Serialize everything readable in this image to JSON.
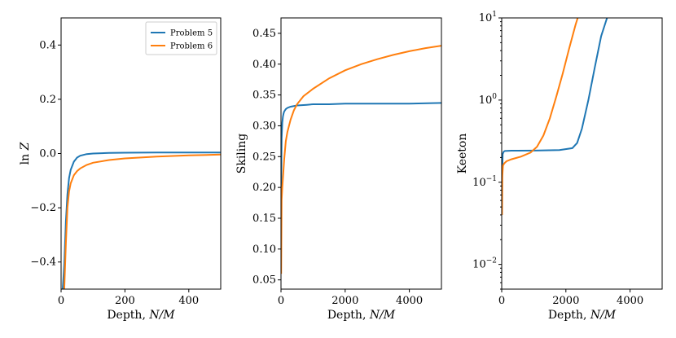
{
  "colors": {
    "problem5": "#1f77b4",
    "problem6": "#ff7f0e"
  },
  "chart_data": [
    {
      "type": "line",
      "xlabel_main": "Depth, ",
      "xlabel_var": "N/M",
      "ylabel_main": "ln ",
      "ylabel_var": "Z",
      "xlim": [
        0,
        500
      ],
      "ylim": [
        -0.5,
        0.5
      ],
      "yscale": "linear",
      "xticks": [
        0,
        200,
        400
      ],
      "xtick_labels": [
        "0",
        "200",
        "400"
      ],
      "yticks": [
        -0.4,
        -0.2,
        0.0,
        0.2,
        0.4
      ],
      "ytick_labels": [
        "−0.4",
        "−0.2",
        "0.0",
        "0.2",
        "0.4"
      ],
      "legend": {
        "placement": "top-right",
        "entries": [
          "Problem 5",
          "Problem 6"
        ]
      },
      "series": [
        {
          "name": "Problem 5",
          "color_key": "problem5",
          "x": [
            5,
            10,
            15,
            20,
            25,
            30,
            40,
            50,
            60,
            80,
            100,
            150,
            200,
            300,
            400,
            500
          ],
          "y": [
            -0.5,
            -0.41,
            -0.25,
            -0.15,
            -0.09,
            -0.06,
            -0.03,
            -0.015,
            -0.008,
            -0.002,
            0.0,
            0.002,
            0.003,
            0.004,
            0.004,
            0.004
          ]
        },
        {
          "name": "Problem 6",
          "color_key": "problem6",
          "x": [
            10,
            15,
            20,
            25,
            30,
            40,
            50,
            60,
            80,
            100,
            150,
            200,
            300,
            400,
            500
          ],
          "y": [
            -0.5,
            -0.33,
            -0.2,
            -0.14,
            -0.11,
            -0.08,
            -0.065,
            -0.055,
            -0.042,
            -0.034,
            -0.024,
            -0.018,
            -0.011,
            -0.007,
            -0.004
          ]
        }
      ]
    },
    {
      "type": "line",
      "xlabel_main": "Depth, ",
      "xlabel_var": "N/M",
      "ylabel_main": "Skiling",
      "ylabel_var": "",
      "xlim": [
        0,
        5000
      ],
      "ylim": [
        0.035,
        0.475
      ],
      "yscale": "linear",
      "xticks": [
        0,
        2000,
        4000
      ],
      "xtick_labels": [
        "0",
        "2000",
        "4000"
      ],
      "yticks": [
        0.05,
        0.1,
        0.15,
        0.2,
        0.25,
        0.3,
        0.35,
        0.4,
        0.45
      ],
      "ytick_labels": [
        "0.05",
        "0.10",
        "0.15",
        "0.20",
        "0.25",
        "0.30",
        "0.35",
        "0.40",
        "0.45"
      ],
      "series": [
        {
          "name": "Problem 5",
          "color_key": "problem5",
          "x": [
            5,
            20,
            40,
            60,
            80,
            100,
            150,
            200,
            300,
            500,
            800,
            1000,
            1500,
            2000,
            3000,
            4000,
            5000
          ],
          "y": [
            0.2,
            0.28,
            0.305,
            0.315,
            0.32,
            0.323,
            0.327,
            0.329,
            0.331,
            0.333,
            0.334,
            0.335,
            0.335,
            0.336,
            0.336,
            0.336,
            0.337
          ]
        },
        {
          "name": "Problem 6",
          "color_key": "problem6",
          "x": [
            5,
            20,
            40,
            60,
            100,
            150,
            200,
            300,
            400,
            500,
            700,
            1000,
            1500,
            2000,
            2500,
            3000,
            3500,
            4000,
            4500,
            5000
          ],
          "y": [
            0.06,
            0.18,
            0.2,
            0.215,
            0.245,
            0.275,
            0.29,
            0.31,
            0.325,
            0.335,
            0.348,
            0.36,
            0.377,
            0.39,
            0.4,
            0.408,
            0.415,
            0.421,
            0.426,
            0.43
          ]
        }
      ]
    },
    {
      "type": "line",
      "xlabel_main": "Depth, ",
      "xlabel_var": "N/M",
      "ylabel_main": "Keeton",
      "ylabel_var": "",
      "xlim": [
        0,
        5000
      ],
      "ylim": [
        0.005,
        10
      ],
      "yscale": "log",
      "xticks": [
        0,
        2000,
        4000
      ],
      "xtick_labels": [
        "0",
        "2000",
        "4000"
      ],
      "yticks": [
        0.01,
        0.1,
        1,
        10
      ],
      "ytick_mant": [
        "10",
        "10",
        "10",
        "10"
      ],
      "ytick_exp": [
        "−2",
        "−1",
        "0",
        "1"
      ],
      "series": [
        {
          "name": "Problem 5",
          "color_key": "problem5",
          "x": [
            10,
            30,
            60,
            100,
            300,
            1000,
            1800,
            2200,
            2350,
            2500,
            2700,
            2900,
            3100,
            3300
          ],
          "y": [
            0.1,
            0.22,
            0.235,
            0.24,
            0.242,
            0.243,
            0.246,
            0.26,
            0.3,
            0.45,
            1.0,
            2.5,
            6.0,
            10.5
          ]
        },
        {
          "name": "Problem 6",
          "color_key": "problem6",
          "x": [
            10,
            20,
            40,
            80,
            150,
            300,
            600,
            900,
            1100,
            1300,
            1500,
            1700,
            1900,
            2100,
            2300,
            2400
          ],
          "y": [
            0.04,
            0.12,
            0.16,
            0.17,
            0.18,
            0.19,
            0.205,
            0.23,
            0.27,
            0.37,
            0.6,
            1.1,
            2.1,
            4.2,
            8.2,
            11.0
          ]
        }
      ]
    }
  ]
}
